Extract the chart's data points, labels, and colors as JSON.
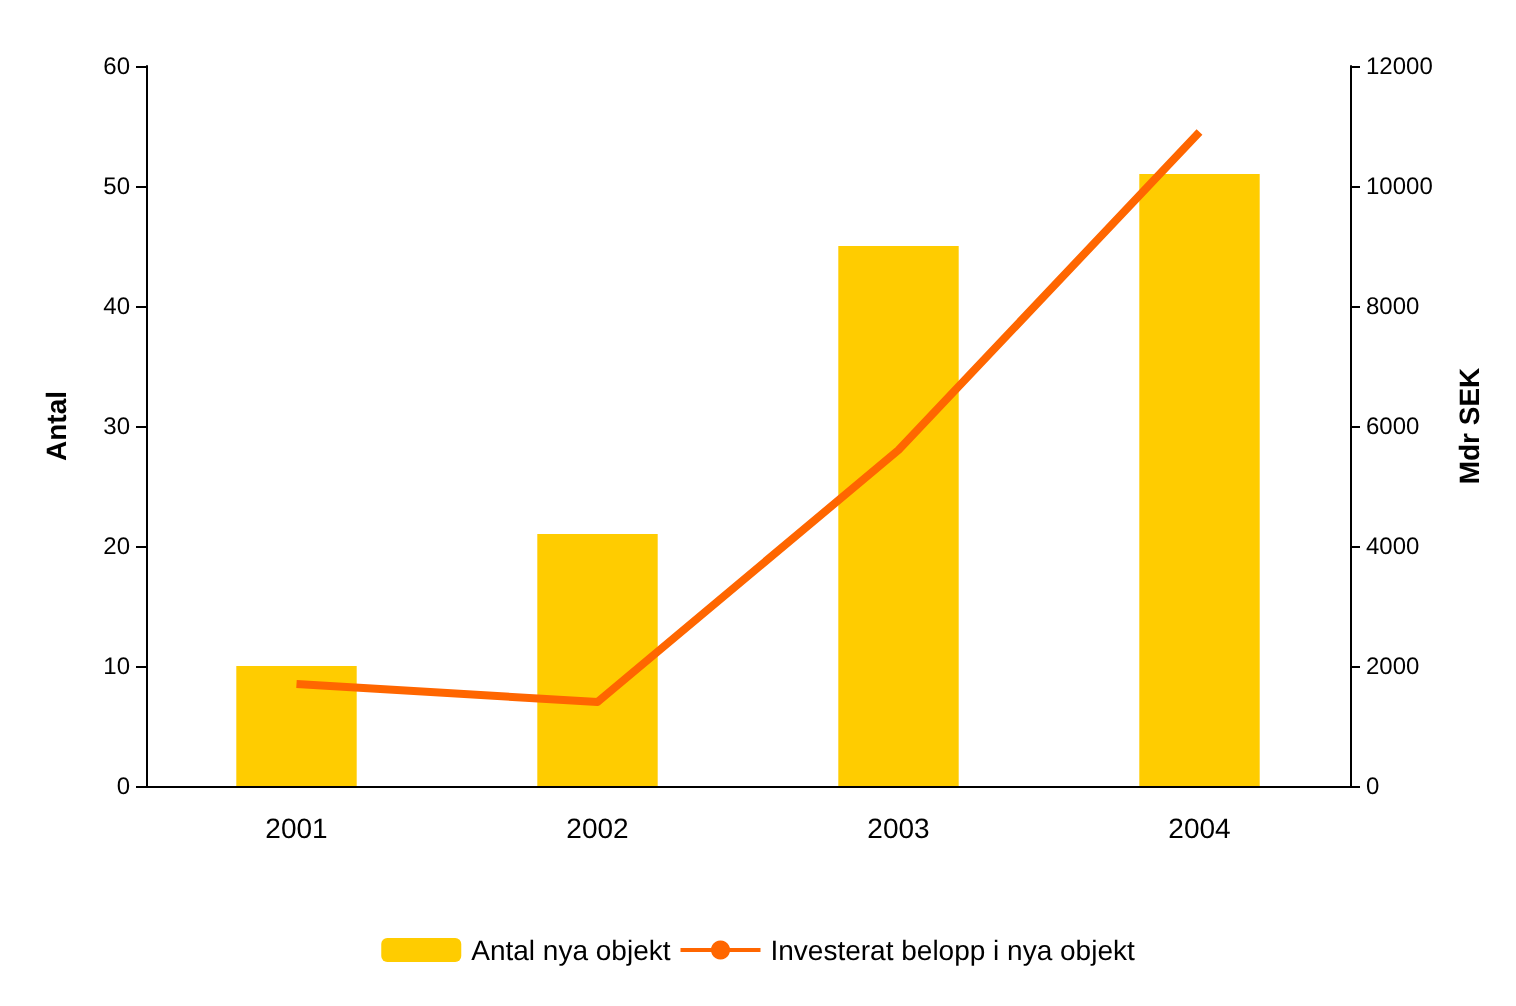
{
  "chart_data": {
    "type": "bar",
    "ylabel": "Antal",
    "y2label": "Mdr SEK",
    "categories": [
      "2001",
      "2002",
      "2003",
      "2004"
    ],
    "series": [
      {
        "name": "Antal nya objekt",
        "color": "#ffcc00",
        "values": [
          10,
          21,
          45,
          51
        ]
      },
      {
        "name": "Investerat belopp i nya objekt",
        "type": "line",
        "axis": "y2",
        "color": "#ff6600",
        "values": [
          1700,
          1400,
          5600,
          10900
        ]
      }
    ],
    "ylim": [
      0,
      60
    ],
    "yticks": [
      0,
      10,
      20,
      30,
      40,
      50,
      60
    ],
    "y2lim": [
      0,
      12000
    ],
    "y2ticks": [
      0,
      2000,
      4000,
      6000,
      8000,
      10000,
      12000
    ],
    "grid": false,
    "legend": "bottom",
    "marker": "none",
    "line_style": "solid"
  }
}
